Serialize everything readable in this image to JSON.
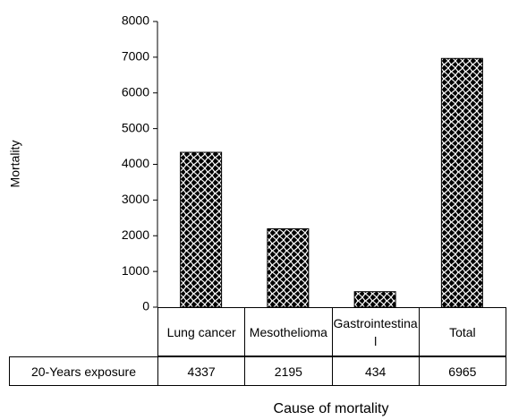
{
  "chart_data": {
    "type": "bar",
    "y_label": "Mortality",
    "x_label": "Cause of mortality",
    "categories": [
      "Lung cancer",
      "Mesothelioma",
      "Gastrointestinal",
      "Total"
    ],
    "series": [
      {
        "name": "20-Years exposure",
        "color": "#000000",
        "values": [
          4337,
          2195,
          434,
          6965
        ]
      }
    ],
    "ylim": [
      0,
      8000
    ],
    "yticks": [
      0,
      1000,
      2000,
      3000,
      4000,
      5000,
      6000,
      7000,
      8000
    ]
  }
}
